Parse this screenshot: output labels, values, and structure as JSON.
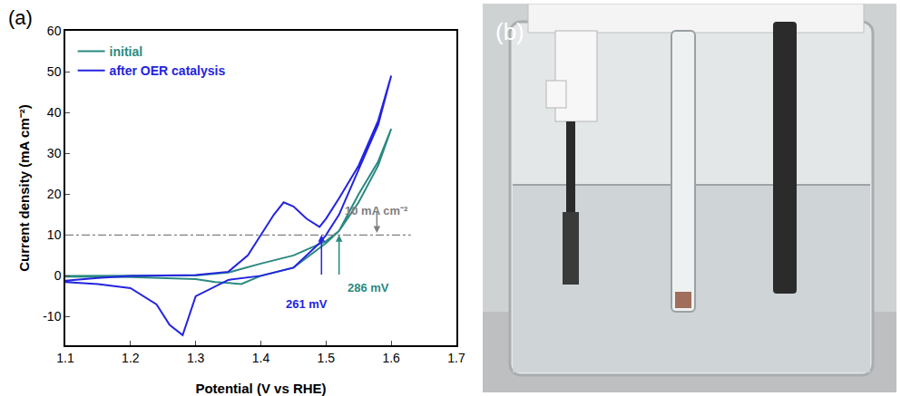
{
  "chart_data": {
    "type": "line",
    "panel_label": "(a)",
    "x_label": "Potential (V vs RHE)",
    "y_label": "Current density (mA cm⁻²)",
    "xlim": [
      1.1,
      1.7
    ],
    "xticks": [
      1.1,
      1.2,
      1.3,
      1.4,
      1.5,
      1.6,
      1.7
    ],
    "ylim": [
      -17,
      60
    ],
    "yticks": [
      -10,
      0,
      10,
      20,
      30,
      40,
      50,
      60
    ],
    "grid": false,
    "legend": "upper left",
    "series": [
      {
        "name": "initial",
        "color": "#2a8a80",
        "x": [
          1.1,
          1.2,
          1.3,
          1.35,
          1.4,
          1.45,
          1.5,
          1.52,
          1.55,
          1.58,
          1.6,
          1.58,
          1.55,
          1.52,
          1.5,
          1.45,
          1.4,
          1.37,
          1.33,
          1.3,
          1.2,
          1.1
        ],
        "values": [
          0,
          0,
          0.1,
          0.8,
          3,
          5,
          8.5,
          11,
          18,
          27,
          36,
          28,
          20,
          11,
          8,
          2,
          0,
          -2,
          -1.5,
          -0.8,
          -0.3,
          -0.2
        ]
      },
      {
        "name": "after OER catalysis",
        "color": "#2424e0",
        "x": [
          1.1,
          1.15,
          1.2,
          1.3,
          1.35,
          1.38,
          1.4,
          1.42,
          1.435,
          1.45,
          1.47,
          1.49,
          1.5,
          1.52,
          1.55,
          1.58,
          1.6,
          1.58,
          1.55,
          1.52,
          1.5,
          1.49,
          1.45,
          1.4,
          1.35,
          1.3,
          1.28,
          1.26,
          1.24,
          1.2,
          1.15,
          1.1
        ],
        "values": [
          -1.2,
          -0.5,
          0,
          0.2,
          1,
          5,
          10,
          15,
          18,
          17,
          14,
          12,
          14,
          19,
          27,
          38,
          49,
          37,
          26,
          15,
          10,
          8,
          2,
          0,
          -1,
          -5,
          -14.5,
          -12,
          -7,
          -3,
          -2,
          -1.5
        ]
      }
    ],
    "reference_line": {
      "y": 10,
      "x": [
        1.1,
        1.63
      ],
      "color": "#808080"
    },
    "annotations": [
      {
        "text": "10 mA cm⁻²",
        "x": 1.578,
        "y": 16,
        "arrow_x": 1.578,
        "arrow_from": 16,
        "arrow_to": 10.5,
        "color": "#808080"
      },
      {
        "text": "261 mV",
        "x": 1.47,
        "y": -7,
        "arrow_x": 1.493,
        "arrow_from": 0,
        "arrow_to": 10,
        "color": "#2424e0"
      },
      {
        "text": "286 mV",
        "x": 1.565,
        "y": -3,
        "arrow_x": 1.52,
        "arrow_from": 0,
        "arrow_to": 10,
        "color": "#2a8a80"
      }
    ],
    "photo_label": "(b)"
  }
}
